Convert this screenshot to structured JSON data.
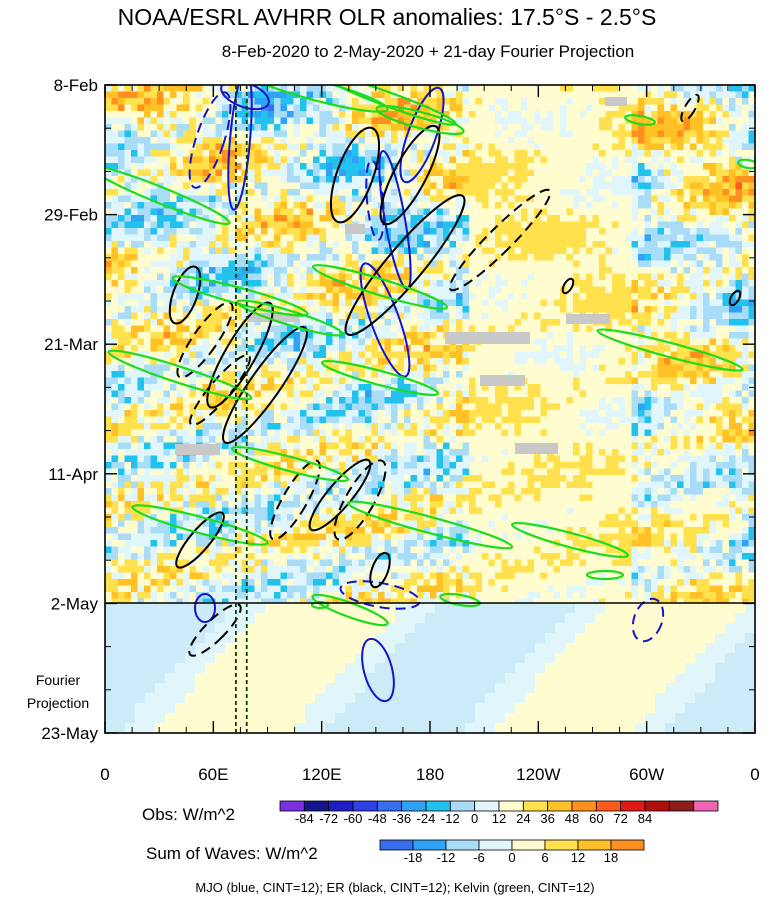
{
  "chart_data": {
    "type": "heatmap",
    "title": "NOAA/ESRL AVHRR OLR anomalies: 17.5°S - 2.5°S",
    "subtitle": "8-Feb-2020 to 2-May-2020 + 21-day Fourier Projection",
    "y_ticks": [
      "8-Feb",
      "29-Feb",
      "21-Mar",
      "11-Apr",
      "2-May",
      "23-May"
    ],
    "y_annotation": [
      "Fourier",
      "Projection"
    ],
    "x_ticks": [
      "0",
      "60E",
      "120E",
      "180",
      "120W",
      "60W",
      "0"
    ],
    "x_range_deg_east": [
      0,
      360
    ],
    "observed_end": "2-May",
    "projection_end": "23-May",
    "vertical_reference_lines_deg_east": [
      72.5,
      78.5
    ],
    "legend_obs": {
      "label": "Obs: W/m^2",
      "ticks": [
        "-84",
        "-72",
        "-60",
        "-48",
        "-36",
        "-24",
        "-12",
        "0",
        "12",
        "24",
        "36",
        "48",
        "60",
        "72",
        "84"
      ],
      "colors": [
        "#7b30e0",
        "#14148e",
        "#1e1ec8",
        "#2f3fe6",
        "#3a6ef0",
        "#2ea3f5",
        "#22c2ee",
        "#a9dcf7",
        "#e1f6fb",
        "#fffdcf",
        "#ffe04d",
        "#ffc125",
        "#ff8f1f",
        "#ff5a1c",
        "#e41717",
        "#b30e0e",
        "#8e1e1e",
        "#f064b4"
      ]
    },
    "legend_waves": {
      "label": "Sum of Waves: W/m^2",
      "ticks": [
        "-18",
        "-12",
        "-6",
        "0",
        "6",
        "12",
        "18"
      ],
      "colors": [
        "#3a6ef0",
        "#2ea3f5",
        "#a9dcf7",
        "#e1f6fb",
        "#fffdcf",
        "#ffe04d",
        "#ffc125",
        "#ff8f1f"
      ]
    },
    "footnote": "MJO (blue, CINT=12); ER (black, CINT=12); Kelvin (green, CINT=12)"
  }
}
